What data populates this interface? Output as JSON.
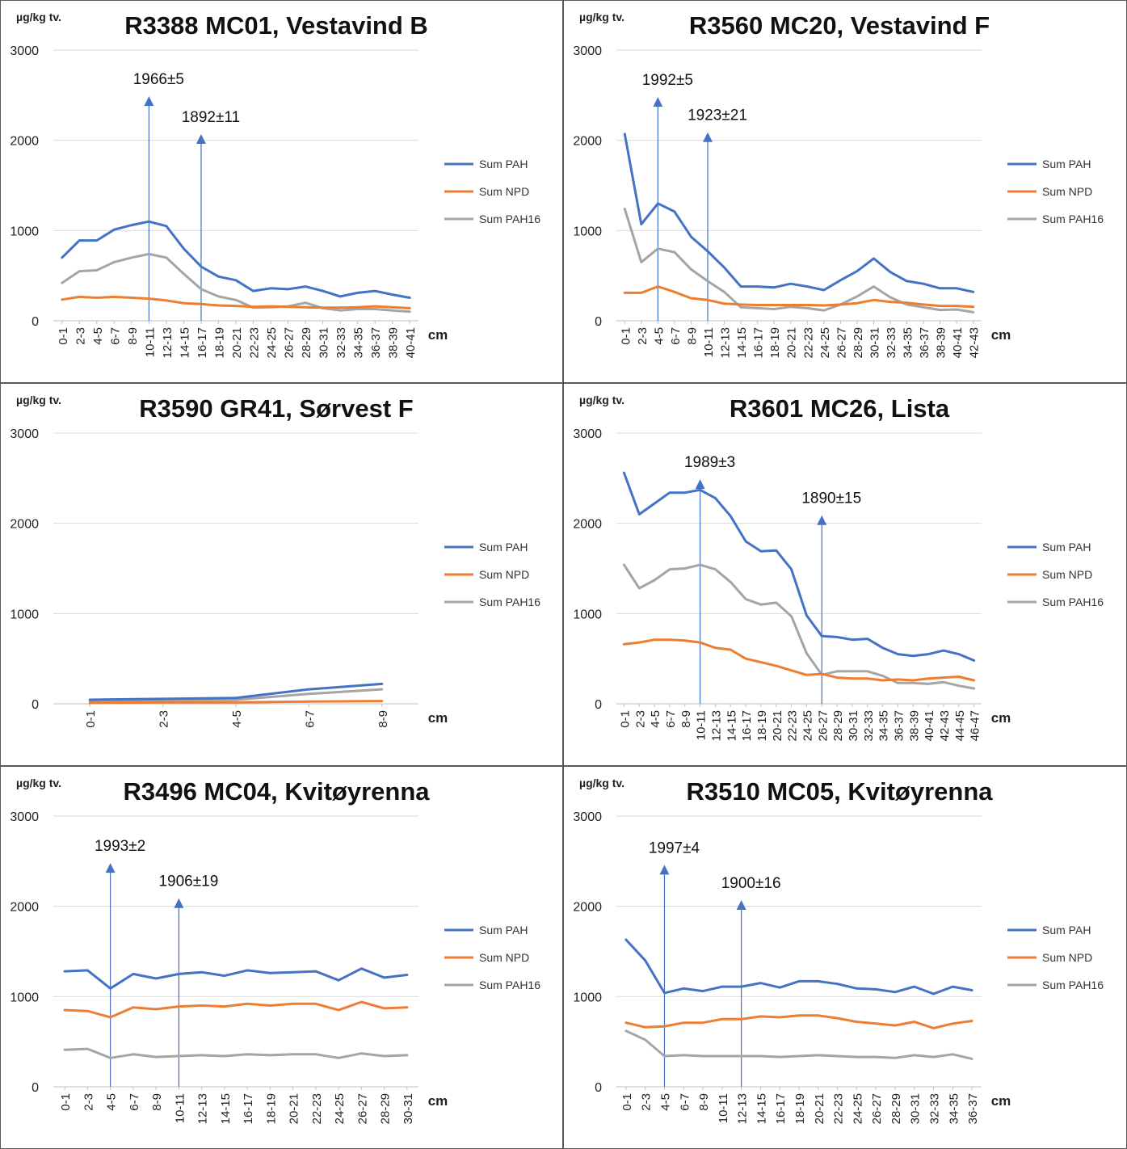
{
  "colors": {
    "pah": "#4472C4",
    "npd": "#ED7D31",
    "pah16": "#A5A5A5",
    "grid": "#D9D9D9",
    "axis": "#BFBFBF",
    "arrow": "#4472C4",
    "border": "#595959"
  },
  "chart_data": [
    {
      "type": "line",
      "title": "R3388 MC01, Vestavind B",
      "unit_label": "µg/kg tv.",
      "xlabel": "cm",
      "ylim": [
        0,
        3000
      ],
      "yticks": [
        0,
        1000,
        2000,
        3000
      ],
      "legend_position": "right",
      "categories": [
        "0-1",
        "2-3",
        "4-5",
        "6-7",
        "8-9",
        "10-11",
        "12-13",
        "14-15",
        "16-17",
        "18-19",
        "20-21",
        "22-23",
        "24-25",
        "26-27",
        "28-29",
        "30-31",
        "32-33",
        "34-35",
        "36-37",
        "38-39",
        "40-41"
      ],
      "series": [
        {
          "name": "Sum PAH",
          "color": "#4472C4",
          "values": [
            700,
            890,
            890,
            1010,
            1060,
            1100,
            1050,
            800,
            600,
            490,
            450,
            330,
            360,
            350,
            380,
            330,
            270,
            310,
            330,
            290,
            255
          ]
        },
        {
          "name": "Sum NPD",
          "color": "#ED7D31",
          "values": [
            235,
            265,
            255,
            265,
            255,
            245,
            225,
            195,
            185,
            170,
            165,
            155,
            160,
            155,
            150,
            145,
            145,
            150,
            160,
            150,
            140
          ]
        },
        {
          "name": "Sum PAH16",
          "color": "#A5A5A5",
          "values": [
            420,
            550,
            560,
            650,
            700,
            740,
            700,
            520,
            350,
            270,
            230,
            145,
            150,
            160,
            200,
            140,
            115,
            130,
            130,
            115,
            100
          ]
        }
      ],
      "annotations": [
        {
          "label": "1966±5",
          "category": "10-11",
          "tip_value": 2480
        },
        {
          "label": "1892±11",
          "category": "16-17",
          "tip_value": 2060
        }
      ]
    },
    {
      "type": "line",
      "title": "R3560 MC20, Vestavind F",
      "unit_label": "µg/kg tv.",
      "xlabel": "cm",
      "ylim": [
        0,
        3000
      ],
      "yticks": [
        0,
        1000,
        2000,
        3000
      ],
      "legend_position": "right",
      "categories": [
        "0-1",
        "2-3",
        "4-5",
        "6-7",
        "8-9",
        "10-11",
        "12-13",
        "14-15",
        "16-17",
        "18-19",
        "20-21",
        "22-23",
        "24-25",
        "26-27",
        "28-29",
        "30-31",
        "32-33",
        "34-35",
        "36-37",
        "38-39",
        "40-41",
        "42-43"
      ],
      "series": [
        {
          "name": "Sum PAH",
          "color": "#4472C4",
          "values": [
            2070,
            1070,
            1300,
            1210,
            930,
            770,
            590,
            380,
            380,
            370,
            410,
            380,
            340,
            450,
            550,
            690,
            540,
            440,
            410,
            360,
            360,
            320
          ]
        },
        {
          "name": "Sum NPD",
          "color": "#ED7D31",
          "values": [
            310,
            310,
            380,
            320,
            250,
            230,
            190,
            180,
            175,
            175,
            175,
            175,
            170,
            180,
            195,
            230,
            210,
            200,
            180,
            165,
            165,
            155
          ]
        },
        {
          "name": "Sum PAH16",
          "color": "#A5A5A5",
          "values": [
            1240,
            650,
            800,
            760,
            570,
            440,
            320,
            150,
            140,
            130,
            155,
            140,
            115,
            180,
            270,
            380,
            260,
            180,
            150,
            120,
            125,
            95
          ]
        }
      ],
      "annotations": [
        {
          "label": "1992±5",
          "category": "4-5",
          "tip_value": 2470
        },
        {
          "label": "1923±21",
          "category": "10-11",
          "tip_value": 2080
        }
      ]
    },
    {
      "type": "line",
      "title": "R3590 GR41, Sørvest F",
      "unit_label": "µg/kg tv.",
      "xlabel": "cm",
      "ylim": [
        0,
        3000
      ],
      "yticks": [
        0,
        1000,
        2000,
        3000
      ],
      "legend_position": "right",
      "categories": [
        "0-1",
        "2-3",
        "4-5",
        "6-7",
        "8-9"
      ],
      "series": [
        {
          "name": "Sum PAH",
          "color": "#4472C4",
          "values": [
            45,
            55,
            65,
            160,
            220
          ]
        },
        {
          "name": "Sum NPD",
          "color": "#ED7D31",
          "values": [
            10,
            15,
            15,
            25,
            30
          ]
        },
        {
          "name": "Sum PAH16",
          "color": "#A5A5A5",
          "values": [
            30,
            40,
            45,
            110,
            160
          ]
        }
      ],
      "annotations": []
    },
    {
      "type": "line",
      "title": "R3601 MC26, Lista",
      "unit_label": "µg/kg tv.",
      "xlabel": "cm",
      "ylim": [
        0,
        3000
      ],
      "yticks": [
        0,
        1000,
        2000,
        3000
      ],
      "legend_position": "right",
      "categories": [
        "0-1",
        "2-3",
        "4-5",
        "6-7",
        "8-9",
        "10-11",
        "12-13",
        "14-15",
        "16-17",
        "18-19",
        "20-21",
        "22-23",
        "24-25",
        "26-27",
        "28-29",
        "30-31",
        "32-33",
        "34-35",
        "36-37",
        "38-39",
        "40-41",
        "42-43",
        "44-45",
        "46-47"
      ],
      "series": [
        {
          "name": "Sum PAH",
          "color": "#4472C4",
          "values": [
            2560,
            2100,
            2220,
            2340,
            2340,
            2370,
            2280,
            2080,
            1800,
            1690,
            1700,
            1490,
            980,
            750,
            740,
            710,
            720,
            620,
            550,
            530,
            550,
            590,
            550,
            480
          ]
        },
        {
          "name": "Sum NPD",
          "color": "#ED7D31",
          "values": [
            660,
            680,
            710,
            710,
            700,
            680,
            620,
            600,
            500,
            460,
            420,
            370,
            320,
            330,
            290,
            280,
            280,
            260,
            270,
            260,
            280,
            290,
            300,
            260
          ]
        },
        {
          "name": "Sum PAH16",
          "color": "#A5A5A5",
          "values": [
            1540,
            1280,
            1370,
            1490,
            1500,
            1540,
            1490,
            1350,
            1160,
            1100,
            1120,
            970,
            560,
            320,
            360,
            360,
            360,
            310,
            230,
            230,
            220,
            240,
            200,
            170
          ]
        }
      ],
      "annotations": [
        {
          "label": "1989±3",
          "category": "10-11",
          "tip_value": 2480
        },
        {
          "label": "1890±15",
          "category": "26-27",
          "tip_value": 2080
        }
      ]
    },
    {
      "type": "line",
      "title": "R3496 MC04, Kvitøyrenna",
      "unit_label": "µg/kg tv.",
      "xlabel": "cm",
      "ylim": [
        0,
        3000
      ],
      "yticks": [
        0,
        1000,
        2000,
        3000
      ],
      "legend_position": "right",
      "categories": [
        "0-1",
        "2-3",
        "4-5",
        "6-7",
        "8-9",
        "10-11",
        "12-13",
        "14-15",
        "16-17",
        "18-19",
        "20-21",
        "22-23",
        "24-25",
        "26-27",
        "28-29",
        "30-31"
      ],
      "series": [
        {
          "name": "Sum PAH",
          "color": "#4472C4",
          "values": [
            1280,
            1290,
            1090,
            1250,
            1200,
            1250,
            1270,
            1230,
            1290,
            1260,
            1270,
            1280,
            1180,
            1310,
            1210,
            1240
          ]
        },
        {
          "name": "Sum NPD",
          "color": "#ED7D31",
          "values": [
            850,
            840,
            770,
            880,
            860,
            890,
            900,
            890,
            920,
            900,
            920,
            920,
            850,
            940,
            870,
            880
          ]
        },
        {
          "name": "Sum PAH16",
          "color": "#A5A5A5",
          "values": [
            410,
            420,
            320,
            360,
            330,
            340,
            350,
            340,
            360,
            350,
            360,
            360,
            320,
            370,
            340,
            350
          ]
        }
      ],
      "annotations": [
        {
          "label": "1993±2",
          "category": "4-5",
          "tip_value": 2470
        },
        {
          "label": "1906±19",
          "category": "10-11",
          "tip_value": 2080
        }
      ]
    },
    {
      "type": "line",
      "title": "R3510 MC05, Kvitøyrenna",
      "unit_label": "µg/kg tv.",
      "xlabel": "cm",
      "ylim": [
        0,
        3000
      ],
      "yticks": [
        0,
        1000,
        2000,
        3000
      ],
      "legend_position": "right",
      "categories": [
        "0-1",
        "2-3",
        "4-5",
        "6-7",
        "8-9",
        "10-11",
        "12-13",
        "14-15",
        "16-17",
        "18-19",
        "20-21",
        "22-23",
        "24-25",
        "26-27",
        "28-29",
        "30-31",
        "32-33",
        "34-35",
        "36-37"
      ],
      "series": [
        {
          "name": "Sum PAH",
          "color": "#4472C4",
          "values": [
            1630,
            1400,
            1040,
            1090,
            1060,
            1110,
            1110,
            1150,
            1100,
            1170,
            1170,
            1140,
            1090,
            1080,
            1050,
            1110,
            1030,
            1110,
            1070
          ]
        },
        {
          "name": "Sum NPD",
          "color": "#ED7D31",
          "values": [
            710,
            660,
            670,
            710,
            710,
            750,
            750,
            780,
            770,
            790,
            790,
            760,
            720,
            700,
            680,
            720,
            650,
            700,
            730
          ]
        },
        {
          "name": "Sum PAH16",
          "color": "#A5A5A5",
          "values": [
            620,
            520,
            340,
            350,
            340,
            340,
            340,
            340,
            330,
            340,
            350,
            340,
            330,
            330,
            320,
            350,
            330,
            360,
            310
          ]
        }
      ],
      "annotations": [
        {
          "label": "1997±4",
          "category": "4-5",
          "tip_value": 2450
        },
        {
          "label": "1900±16",
          "category": "12-13",
          "tip_value": 2060
        }
      ]
    }
  ]
}
